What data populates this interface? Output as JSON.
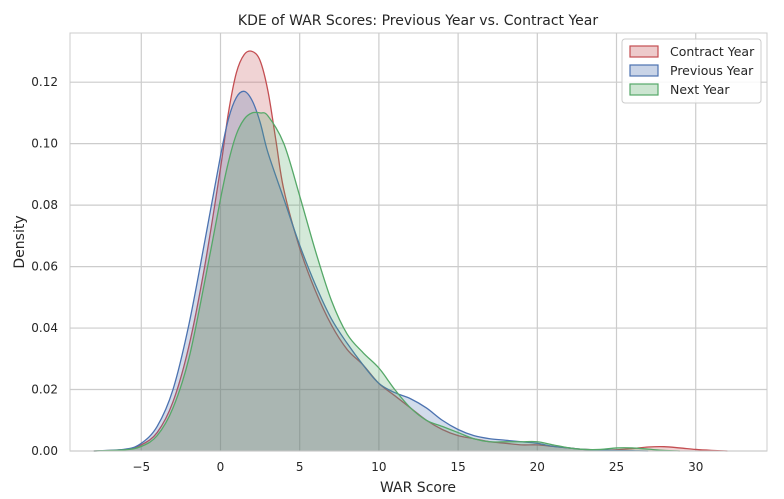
{
  "chart_data": {
    "type": "area",
    "title": "KDE of WAR Scores: Previous Year vs. Contract Year",
    "xlabel": "WAR Score",
    "ylabel": "Density",
    "xlim": [
      -9.5,
      34.5
    ],
    "ylim": [
      0,
      0.136
    ],
    "xticks": [
      -5,
      0,
      5,
      10,
      15,
      20,
      25,
      30
    ],
    "xtick_labels": [
      "−5",
      "0",
      "5",
      "10",
      "15",
      "20",
      "25",
      "30"
    ],
    "yticks": [
      0.0,
      0.02,
      0.04,
      0.06,
      0.08,
      0.1,
      0.12
    ],
    "ytick_labels": [
      "0.00",
      "0.02",
      "0.04",
      "0.06",
      "0.08",
      "0.10",
      "0.12"
    ],
    "grid": true,
    "legend_position": "top-right",
    "series": [
      {
        "name": "Contract Year",
        "color": "#c44e52",
        "points": [
          [
            -8,
            0
          ],
          [
            -6,
            0.0005
          ],
          [
            -5,
            0.002
          ],
          [
            -4,
            0.006
          ],
          [
            -3,
            0.016
          ],
          [
            -2,
            0.034
          ],
          [
            -1,
            0.06
          ],
          [
            0,
            0.092
          ],
          [
            0.5,
            0.11
          ],
          [
            1,
            0.123
          ],
          [
            1.5,
            0.129
          ],
          [
            2,
            0.13
          ],
          [
            2.5,
            0.127
          ],
          [
            3,
            0.117
          ],
          [
            3.5,
            0.101
          ],
          [
            4,
            0.085
          ],
          [
            5,
            0.066
          ],
          [
            6,
            0.052
          ],
          [
            7,
            0.041
          ],
          [
            8,
            0.033
          ],
          [
            9,
            0.028
          ],
          [
            10,
            0.022
          ],
          [
            11,
            0.018
          ],
          [
            12,
            0.014
          ],
          [
            13,
            0.01
          ],
          [
            14,
            0.007
          ],
          [
            15,
            0.005
          ],
          [
            16,
            0.004
          ],
          [
            17,
            0.003
          ],
          [
            18,
            0.0025
          ],
          [
            19,
            0.002
          ],
          [
            20,
            0.002
          ],
          [
            21,
            0.0015
          ],
          [
            22,
            0.001
          ],
          [
            23,
            0.0005
          ],
          [
            24,
            0.0003
          ],
          [
            25,
            0.0004
          ],
          [
            26,
            0.0008
          ],
          [
            27,
            0.0013
          ],
          [
            28,
            0.0014
          ],
          [
            29,
            0.001
          ],
          [
            30,
            0.0005
          ],
          [
            31,
            0.0002
          ],
          [
            32,
            0
          ]
        ]
      },
      {
        "name": "Previous Year",
        "color": "#4c72b0",
        "points": [
          [
            -8,
            0
          ],
          [
            -6,
            0.0006
          ],
          [
            -5,
            0.0025
          ],
          [
            -4,
            0.008
          ],
          [
            -3,
            0.02
          ],
          [
            -2,
            0.041
          ],
          [
            -1,
            0.068
          ],
          [
            0,
            0.096
          ],
          [
            0.5,
            0.108
          ],
          [
            1,
            0.115
          ],
          [
            1.5,
            0.117
          ],
          [
            2,
            0.114
          ],
          [
            2.5,
            0.107
          ],
          [
            3,
            0.097
          ],
          [
            4,
            0.082
          ],
          [
            5,
            0.067
          ],
          [
            6,
            0.054
          ],
          [
            7,
            0.043
          ],
          [
            8,
            0.035
          ],
          [
            9,
            0.028
          ],
          [
            10,
            0.022
          ],
          [
            11,
            0.019
          ],
          [
            12,
            0.017
          ],
          [
            13,
            0.014
          ],
          [
            14,
            0.01
          ],
          [
            15,
            0.007
          ],
          [
            16,
            0.005
          ],
          [
            17,
            0.004
          ],
          [
            18,
            0.0035
          ],
          [
            19,
            0.003
          ],
          [
            20,
            0.0025
          ],
          [
            21,
            0.0015
          ],
          [
            22,
            0.001
          ],
          [
            23,
            0.0005
          ],
          [
            24,
            0.0003
          ],
          [
            25,
            0.0002
          ],
          [
            26,
            0.0001
          ],
          [
            27,
            0
          ]
        ]
      },
      {
        "name": "Next Year",
        "color": "#55a868",
        "points": [
          [
            -8,
            0
          ],
          [
            -6,
            0.0004
          ],
          [
            -5,
            0.0015
          ],
          [
            -4,
            0.005
          ],
          [
            -3,
            0.014
          ],
          [
            -2,
            0.03
          ],
          [
            -1,
            0.055
          ],
          [
            0,
            0.082
          ],
          [
            0.5,
            0.094
          ],
          [
            1,
            0.103
          ],
          [
            1.5,
            0.108
          ],
          [
            2,
            0.11
          ],
          [
            2.5,
            0.11
          ],
          [
            3,
            0.109
          ],
          [
            4,
            0.1
          ],
          [
            5,
            0.083
          ],
          [
            6,
            0.065
          ],
          [
            7,
            0.049
          ],
          [
            8,
            0.038
          ],
          [
            9,
            0.032
          ],
          [
            10,
            0.027
          ],
          [
            11,
            0.02
          ],
          [
            12,
            0.014
          ],
          [
            13,
            0.01
          ],
          [
            14,
            0.008
          ],
          [
            15,
            0.006
          ],
          [
            16,
            0.004
          ],
          [
            17,
            0.003
          ],
          [
            18,
            0.003
          ],
          [
            19,
            0.003
          ],
          [
            20,
            0.003
          ],
          [
            21,
            0.002
          ],
          [
            22,
            0.001
          ],
          [
            23,
            0.0005
          ],
          [
            24,
            0.0005
          ],
          [
            25,
            0.001
          ],
          [
            26,
            0.001
          ],
          [
            27,
            0.0006
          ],
          [
            28,
            0.0002
          ],
          [
            29,
            0
          ]
        ]
      }
    ]
  },
  "colors": {
    "background": "#ffffff",
    "grid": "#cccccc",
    "axes_edge": "#cccccc",
    "text": "#262626"
  }
}
